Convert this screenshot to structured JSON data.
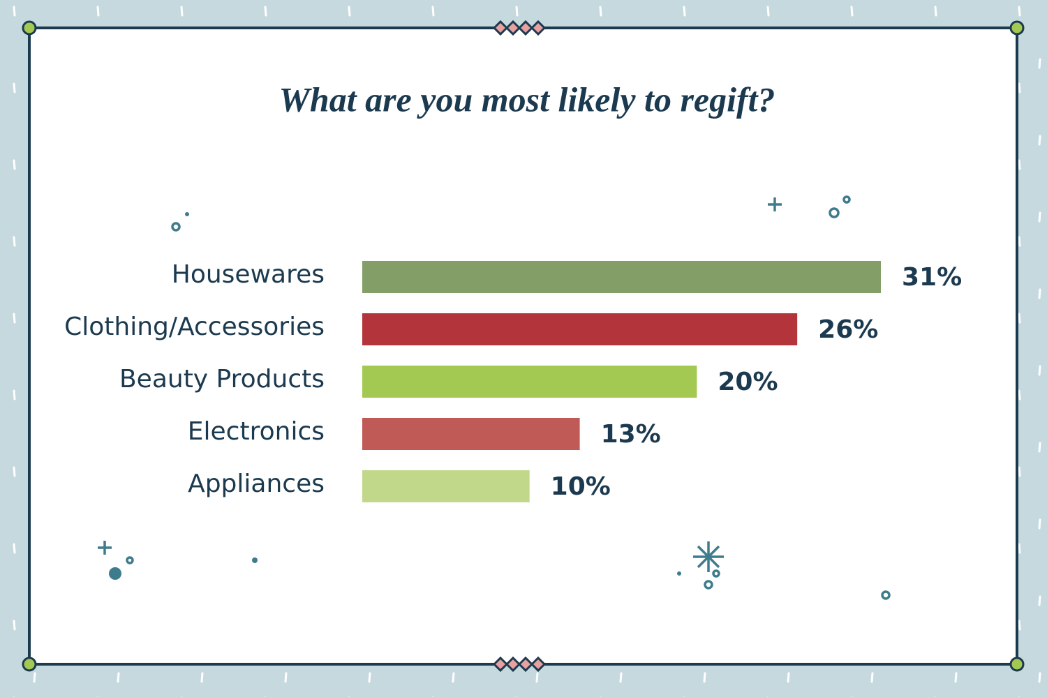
{
  "chart_data": {
    "type": "bar",
    "orientation": "horizontal",
    "title": "What are you most likely to regift?",
    "categories": [
      "Housewares",
      "Clothing/Accessories",
      "Beauty Products",
      "Electronics",
      "Appliances"
    ],
    "values": [
      31,
      26,
      20,
      13,
      10
    ],
    "value_labels": [
      "31%",
      "26%",
      "20%",
      "13%",
      "10%"
    ],
    "colors": [
      "#839f67",
      "#b3343a",
      "#a4c952",
      "#bf5a56",
      "#c1d88b"
    ]
  }
}
